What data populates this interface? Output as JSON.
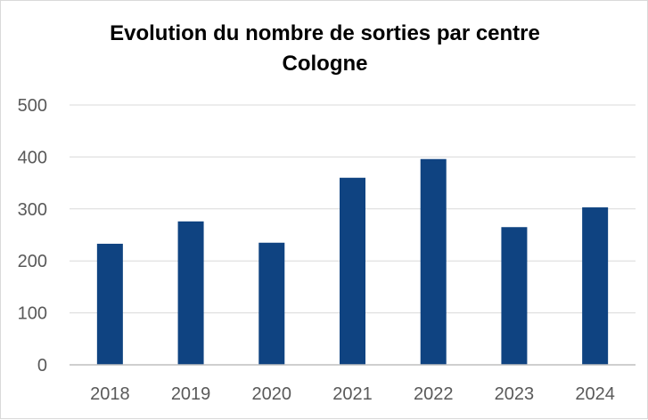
{
  "chart_data": {
    "type": "bar",
    "title": "Evolution du nombre de sorties par centre",
    "subtitle": "Cologne",
    "categories": [
      "2018",
      "2019",
      "2020",
      "2021",
      "2022",
      "2023",
      "2024"
    ],
    "values": [
      233,
      276,
      235,
      360,
      396,
      265,
      303
    ],
    "ylim": [
      0,
      500
    ],
    "yticks": [
      "0",
      "100",
      "200",
      "300",
      "400",
      "500"
    ],
    "grid": true,
    "legend": "none",
    "colors": {
      "bar": "#0f4381",
      "grid": "#d9d9d9",
      "axis": "#bfbfbf",
      "tick_text": "#595959"
    }
  }
}
